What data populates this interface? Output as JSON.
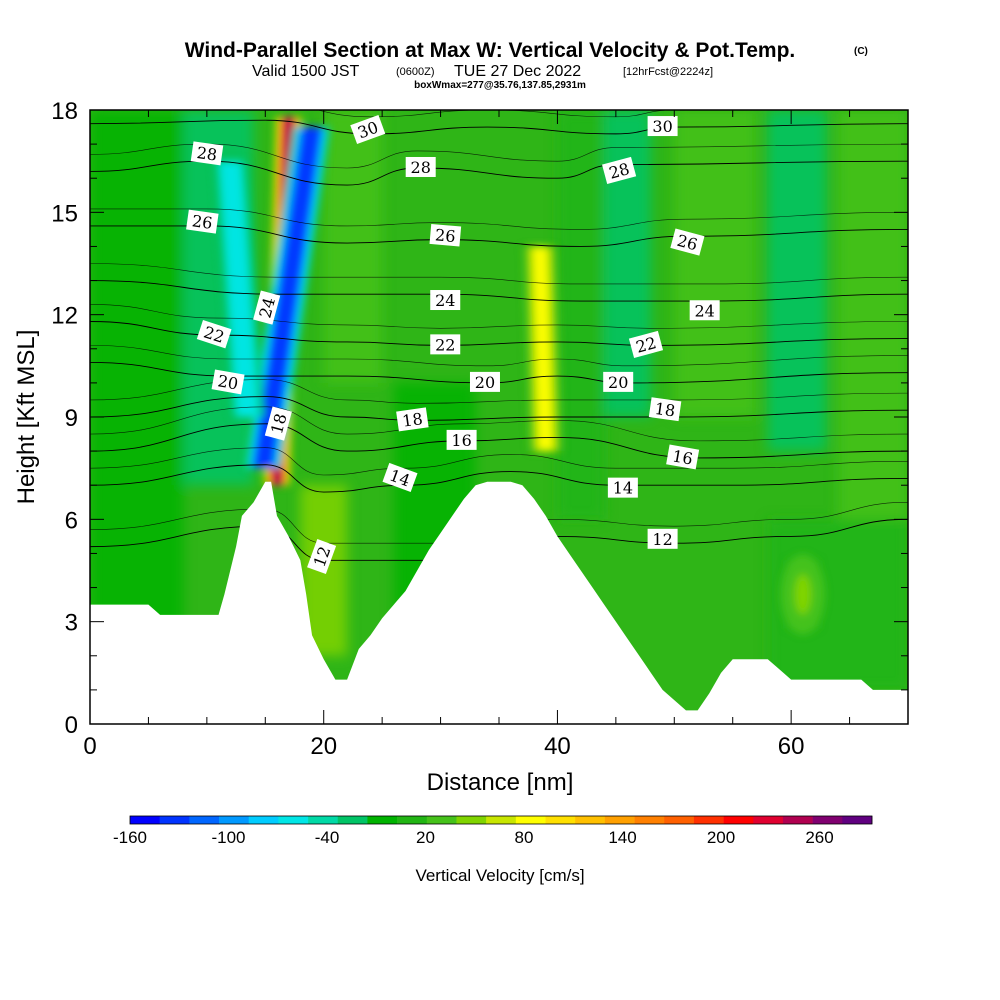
{
  "title": {
    "main": "Wind-Parallel Section at Max W: Vertical Velocity & Pot.Temp.",
    "copyright": "(C)",
    "valid_prefix": "Valid 1500 JST",
    "valid_utc": "(0600Z)",
    "valid_date": "TUE 27 Dec 2022",
    "forecast": "[12hrFcst@2224z]",
    "box_info": "boxWmax=277@35.76,137.85,2931m"
  },
  "chart_data": {
    "type": "heatmap",
    "xlabel": "Distance [nm]",
    "ylabel": "Height [Kft MSL]",
    "xlim": [
      0,
      70
    ],
    "ylim": [
      0,
      18
    ],
    "x_ticks": [
      0,
      20,
      40,
      60
    ],
    "y_ticks": [
      0,
      3,
      6,
      9,
      12,
      15,
      18
    ],
    "terrain": [
      [
        0,
        3.5
      ],
      [
        1,
        3.5
      ],
      [
        2,
        3.5
      ],
      [
        3,
        3.5
      ],
      [
        4,
        3.5
      ],
      [
        5,
        3.5
      ],
      [
        6,
        3.2
      ],
      [
        7,
        3.2
      ],
      [
        8,
        3.2
      ],
      [
        9,
        3.2
      ],
      [
        10,
        3.2
      ],
      [
        11,
        3.2
      ],
      [
        11.5,
        3.8
      ],
      [
        12,
        4.5
      ],
      [
        12.5,
        5.2
      ],
      [
        13,
        6.1
      ],
      [
        14,
        6.5
      ],
      [
        15,
        7.1
      ],
      [
        15.5,
        7.1
      ],
      [
        16,
        6.1
      ],
      [
        17,
        5.5
      ],
      [
        18,
        4.8
      ],
      [
        18.5,
        3.8
      ],
      [
        19,
        2.6
      ],
      [
        20,
        1.9
      ],
      [
        21,
        1.3
      ],
      [
        22,
        1.3
      ],
      [
        23,
        2.2
      ],
      [
        24,
        2.6
      ],
      [
        25,
        3.1
      ],
      [
        26,
        3.5
      ],
      [
        27,
        3.9
      ],
      [
        28,
        4.5
      ],
      [
        29,
        5.1
      ],
      [
        30,
        5.6
      ],
      [
        31,
        6.1
      ],
      [
        32,
        6.6
      ],
      [
        33,
        7.0
      ],
      [
        34,
        7.1
      ],
      [
        35,
        7.1
      ],
      [
        36,
        7.1
      ],
      [
        37,
        7.0
      ],
      [
        38,
        6.6
      ],
      [
        39,
        6.1
      ],
      [
        40,
        5.5
      ],
      [
        41,
        5.0
      ],
      [
        42,
        4.5
      ],
      [
        43,
        4.0
      ],
      [
        44,
        3.5
      ],
      [
        45,
        3.0
      ],
      [
        46,
        2.5
      ],
      [
        47,
        2.0
      ],
      [
        48,
        1.5
      ],
      [
        49,
        1.0
      ],
      [
        50,
        0.7
      ],
      [
        51,
        0.4
      ],
      [
        52,
        0.4
      ],
      [
        53,
        0.9
      ],
      [
        54,
        1.5
      ],
      [
        55,
        1.9
      ],
      [
        56,
        1.9
      ],
      [
        57,
        1.9
      ],
      [
        58,
        1.9
      ],
      [
        59,
        1.6
      ],
      [
        60,
        1.3
      ],
      [
        61,
        1.3
      ],
      [
        62,
        1.3
      ],
      [
        63,
        1.3
      ],
      [
        64,
        1.3
      ],
      [
        65,
        1.3
      ],
      [
        66,
        1.3
      ],
      [
        67,
        1.0
      ],
      [
        68,
        1.0
      ],
      [
        69,
        1.0
      ],
      [
        70,
        1.0
      ]
    ],
    "theta_contours": [
      {
        "level": 12,
        "heights": [
          [
            0,
            5.2
          ],
          [
            15,
            5.8
          ],
          [
            20,
            4.8
          ],
          [
            30,
            4.8
          ],
          [
            40,
            5.5
          ],
          [
            50,
            5.3
          ],
          [
            60,
            5.5
          ],
          [
            70,
            6.0
          ]
        ]
      },
      {
        "level": 14,
        "heights": [
          [
            0,
            7.0
          ],
          [
            15,
            7.6
          ],
          [
            20,
            6.8
          ],
          [
            27,
            7.0
          ],
          [
            36,
            7.4
          ],
          [
            45,
            7.0
          ],
          [
            55,
            7.0
          ],
          [
            70,
            7.2
          ]
        ]
      },
      {
        "level": 16,
        "heights": [
          [
            0,
            8.0
          ],
          [
            15,
            8.8
          ],
          [
            22,
            8.0
          ],
          [
            32,
            8.3
          ],
          [
            40,
            8.4
          ],
          [
            52,
            7.8
          ],
          [
            70,
            8.0
          ]
        ]
      },
      {
        "level": 18,
        "heights": [
          [
            0,
            9.0
          ],
          [
            15,
            9.6
          ],
          [
            22,
            9.0
          ],
          [
            28,
            8.9
          ],
          [
            40,
            9.0
          ],
          [
            50,
            9.0
          ],
          [
            70,
            9.2
          ]
        ]
      },
      {
        "level": 20,
        "heights": [
          [
            0,
            10.6
          ],
          [
            12,
            10.2
          ],
          [
            22,
            10.2
          ],
          [
            34,
            10.0
          ],
          [
            40,
            10.2
          ],
          [
            46,
            10.0
          ],
          [
            70,
            10.3
          ]
        ]
      },
      {
        "level": 22,
        "heights": [
          [
            0,
            11.8
          ],
          [
            11,
            11.4
          ],
          [
            22,
            11.2
          ],
          [
            30,
            11.1
          ],
          [
            40,
            11.2
          ],
          [
            48,
            11.1
          ],
          [
            70,
            11.3
          ]
        ]
      },
      {
        "level": 24,
        "heights": [
          [
            0,
            13.0
          ],
          [
            16,
            12.6
          ],
          [
            24,
            12.6
          ],
          [
            30,
            12.6
          ],
          [
            42,
            12.4
          ],
          [
            53,
            12.4
          ],
          [
            70,
            12.6
          ]
        ]
      },
      {
        "level": 26,
        "heights": [
          [
            0,
            14.6
          ],
          [
            10,
            14.6
          ],
          [
            22,
            14.1
          ],
          [
            30,
            14.2
          ],
          [
            42,
            14.0
          ],
          [
            51,
            14.3
          ],
          [
            70,
            14.5
          ]
        ]
      },
      {
        "level": 28,
        "heights": [
          [
            0,
            16.2
          ],
          [
            10,
            16.5
          ],
          [
            22,
            15.8
          ],
          [
            28,
            16.3
          ],
          [
            40,
            16.0
          ],
          [
            45,
            16.4
          ],
          [
            70,
            16.5
          ]
        ]
      },
      {
        "level": 30,
        "heights": [
          [
            0,
            17.6
          ],
          [
            15,
            17.7
          ],
          [
            24,
            17.3
          ],
          [
            34,
            17.5
          ],
          [
            45,
            17.3
          ],
          [
            50,
            17.5
          ],
          [
            70,
            17.6
          ]
        ]
      }
    ],
    "contour_labels": [
      {
        "text": "28",
        "x": 10.0,
        "y": 16.7,
        "angle": 8
      },
      {
        "text": "26",
        "x": 9.6,
        "y": 14.7,
        "angle": 8
      },
      {
        "text": "22",
        "x": 10.6,
        "y": 11.4,
        "angle": 18
      },
      {
        "text": "20",
        "x": 11.8,
        "y": 10.0,
        "angle": 10
      },
      {
        "text": "24",
        "x": 15.2,
        "y": 12.2,
        "angle": -75
      },
      {
        "text": "18",
        "x": 16.2,
        "y": 8.8,
        "angle": -75
      },
      {
        "text": "30",
        "x": 23.8,
        "y": 17.4,
        "angle": -20
      },
      {
        "text": "28",
        "x": 28.3,
        "y": 16.3,
        "angle": 0
      },
      {
        "text": "26",
        "x": 30.4,
        "y": 14.3,
        "angle": 5
      },
      {
        "text": "24",
        "x": 30.4,
        "y": 12.4,
        "angle": 0
      },
      {
        "text": "22",
        "x": 30.4,
        "y": 11.1,
        "angle": 0
      },
      {
        "text": "20",
        "x": 33.8,
        "y": 10.0,
        "angle": 0
      },
      {
        "text": "18",
        "x": 27.6,
        "y": 8.9,
        "angle": -8
      },
      {
        "text": "16",
        "x": 31.8,
        "y": 8.3,
        "angle": 0
      },
      {
        "text": "14",
        "x": 26.5,
        "y": 7.2,
        "angle": 20
      },
      {
        "text": "12",
        "x": 19.9,
        "y": 4.9,
        "angle": -70
      },
      {
        "text": "30",
        "x": 49.0,
        "y": 17.5,
        "angle": 0
      },
      {
        "text": "28",
        "x": 45.3,
        "y": 16.2,
        "angle": -15
      },
      {
        "text": "26",
        "x": 51.1,
        "y": 14.1,
        "angle": 15
      },
      {
        "text": "24",
        "x": 52.6,
        "y": 12.1,
        "angle": 0
      },
      {
        "text": "22",
        "x": 47.6,
        "y": 11.1,
        "angle": -15
      },
      {
        "text": "20",
        "x": 45.2,
        "y": 10.0,
        "angle": 0
      },
      {
        "text": "18",
        "x": 49.2,
        "y": 9.2,
        "angle": 8
      },
      {
        "text": "16",
        "x": 50.7,
        "y": 7.8,
        "angle": 10
      },
      {
        "text": "14",
        "x": 45.6,
        "y": 6.9,
        "angle": 0
      },
      {
        "text": "12",
        "x": 49.0,
        "y": 5.4,
        "angle": 0
      }
    ],
    "velocity_features": [
      {
        "kind": "updraft_core",
        "value": 277,
        "x_bottom": 16.0,
        "x_top": 17.0,
        "y_bottom": 7.0,
        "y_top": 17.8
      },
      {
        "kind": "downdraft_core",
        "value": -150,
        "x_bottom": 14.8,
        "x_top": 19.0,
        "y_bottom": 7.5,
        "y_top": 17.5
      },
      {
        "kind": "downdraft",
        "value": -70,
        "x_bottom": 13.5,
        "x_top": 12.0,
        "y_bottom": 9.0,
        "y_top": 16.5
      },
      {
        "kind": "updraft",
        "value": 90,
        "x_bottom": 39.0,
        "x_top": 38.5,
        "y_bottom": 8.0,
        "y_top": 14.0
      },
      {
        "kind": "updraft",
        "value": 50,
        "x_bottom": 61.0,
        "x_top": 61.0,
        "y_bottom": 2.8,
        "y_top": 4.8
      }
    ],
    "colorbar": {
      "title": "Vertical Velocity [cm/s]",
      "tick_labels": [
        "-160",
        "-100",
        "-40",
        "20",
        "80",
        "140",
        "200",
        "260"
      ],
      "colors": [
        "#0000ff",
        "#0033ff",
        "#0066ff",
        "#0099ff",
        "#00ccff",
        "#00e6e6",
        "#00d9a6",
        "#00c466",
        "#00b300",
        "#22b514",
        "#45c21a",
        "#80d400",
        "#c8e600",
        "#ffff00",
        "#ffe000",
        "#ffc000",
        "#ffa000",
        "#ff8000",
        "#ff6000",
        "#ff3000",
        "#ff0000",
        "#e00030",
        "#b00050",
        "#800070",
        "#600080"
      ]
    }
  }
}
